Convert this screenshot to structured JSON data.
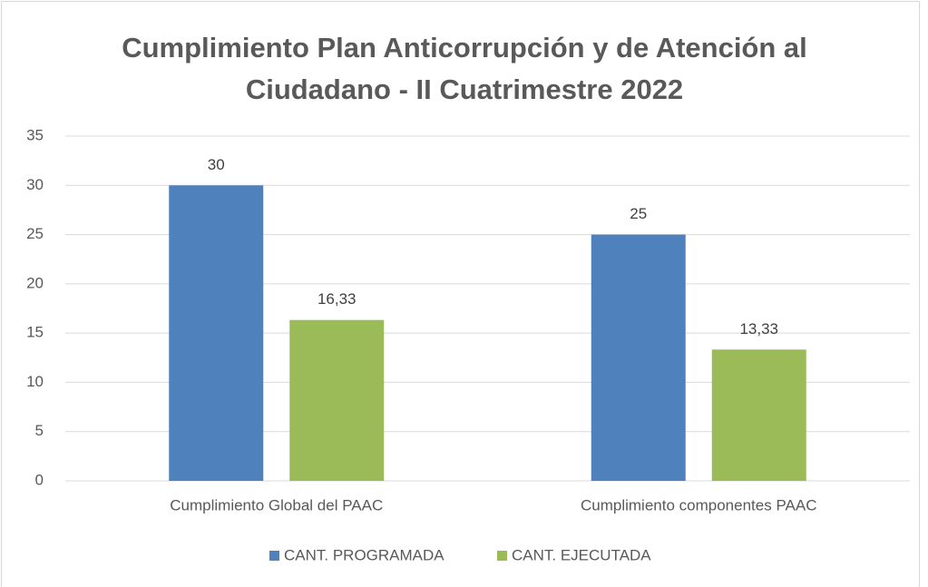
{
  "chart_data": {
    "type": "bar",
    "title": "Cumplimiento Plan Anticorrupción y de Atención al Ciudadano - II Cuatrimestre 2022",
    "categories": [
      "Cumplimiento Global del PAAC",
      "Cumplimiento componentes PAAC"
    ],
    "series": [
      {
        "name": "CANT. PROGRAMADA",
        "color": "#4f81bd",
        "values": [
          30,
          25
        ]
      },
      {
        "name": "CANT. EJECUTADA",
        "color": "#9bbb59",
        "values": [
          16.33,
          13.33
        ],
        "value_labels": [
          "16,33",
          "13,33"
        ]
      }
    ],
    "ylim": [
      0,
      35
    ],
    "yticks": [
      0,
      5,
      10,
      15,
      20,
      25,
      30,
      35
    ],
    "grid": true,
    "legend": "bottom"
  }
}
